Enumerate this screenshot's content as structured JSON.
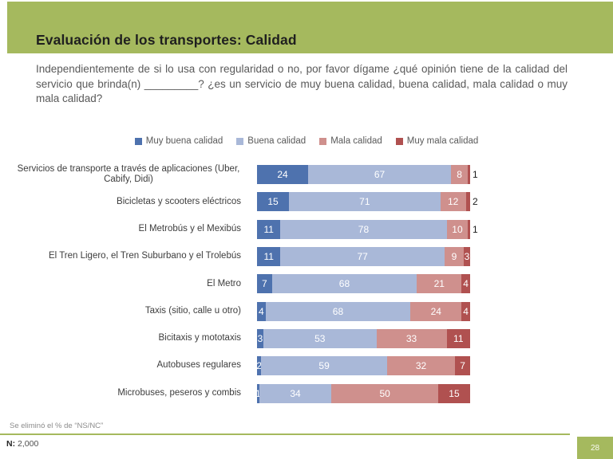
{
  "slide": {
    "title": "Evaluación de los transportes: Calidad",
    "question": "Independientemente de si lo usa con regularidad o no, por favor dígame ¿qué opinión tiene de la calidad del servicio que brinda(n) _________? ¿es un servicio de muy buena calidad, buena calidad, mala calidad o muy mala calidad?",
    "footnote": "Se eliminó el % de “NS/NC”",
    "base_label": "N:",
    "base_value": "2,000",
    "page_number": "28",
    "accent_green": "#a5b95e"
  },
  "chart_data": {
    "type": "bar",
    "orientation": "horizontal",
    "stacked": true,
    "axis_hidden": true,
    "grid": false,
    "legend_position": "top",
    "value_labels": "inside-white",
    "xlim": [
      0,
      100
    ],
    "categories": [
      "Servicios de transporte a través de aplicaciones (Uber, Cabify, Didi)",
      "Bicicletas y scooters eléctricos",
      "El Metrobús y el Mexibús",
      "El Tren Ligero, el Tren Suburbano y el Trolebús",
      "El Metro",
      "Taxis (sitio, calle u otro)",
      "Bicitaxis y mototaxis",
      "Autobuses regulares",
      "Microbuses, peseros y combis"
    ],
    "series": [
      {
        "name": "Muy buena calidad",
        "color": "#4e72ae",
        "values": [
          24,
          15,
          11,
          11,
          7,
          4,
          3,
          2,
          1
        ]
      },
      {
        "name": "Buena calidad",
        "color": "#a9b8d8",
        "values": [
          67,
          71,
          78,
          77,
          68,
          68,
          53,
          59,
          34
        ]
      },
      {
        "name": "Mala calidad",
        "color": "#cf908d",
        "values": [
          8,
          12,
          10,
          9,
          21,
          24,
          33,
          32,
          50
        ]
      },
      {
        "name": "Muy mala calidad",
        "color": "#b05150",
        "values": [
          1,
          2,
          1,
          3,
          4,
          4,
          11,
          7,
          15
        ]
      }
    ],
    "last_label_outside": [
      true,
      true,
      true,
      false,
      false,
      false,
      false,
      false,
      false
    ]
  }
}
